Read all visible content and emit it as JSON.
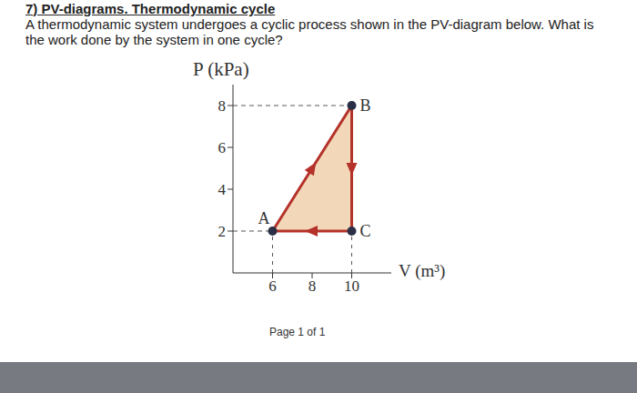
{
  "title": "7) PV-diagrams. Thermodynamic cycle",
  "question": [
    "A thermodynamic system undergoes a cyclic process shown in the PV-diagram below. What is",
    "the work done by the system in one cycle?"
  ],
  "chart_data": {
    "type": "line",
    "x_label": "V (m³)",
    "y_label": "P (kPa)",
    "x": [
      6,
      10,
      10
    ],
    "values": [
      2,
      8,
      2
    ],
    "point_labels": [
      "A",
      "B",
      "C"
    ],
    "xlim": [
      4,
      12
    ],
    "ylim": [
      0,
      9
    ],
    "xticks": [
      6,
      8,
      10
    ],
    "yticks": [
      2,
      4,
      6,
      8
    ],
    "color": "#b5322b",
    "marker": "circle",
    "grid": false
  },
  "footer": "Page 1 of 1"
}
